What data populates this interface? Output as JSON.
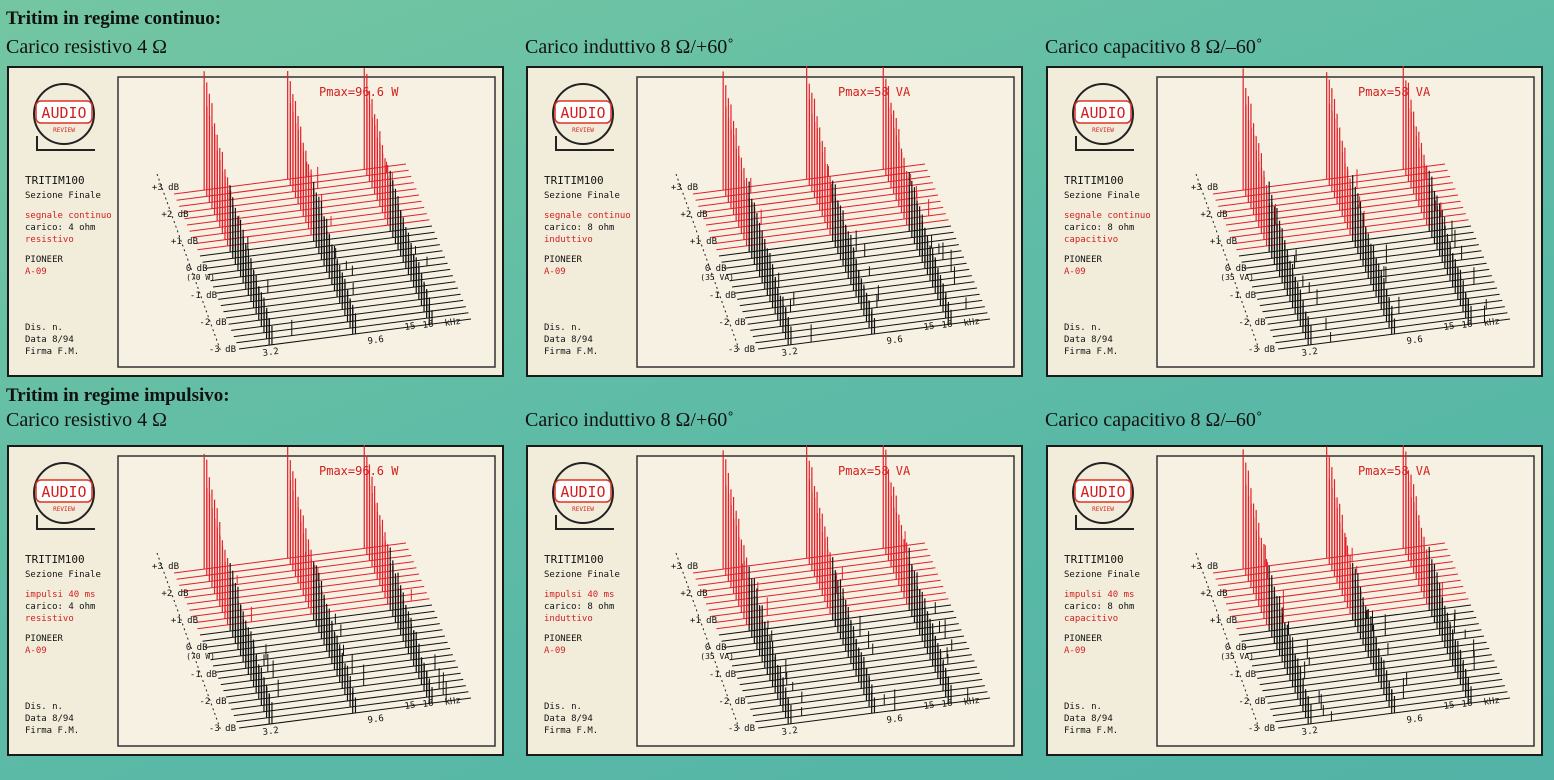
{
  "sections": [
    {
      "title": "Tritim in regime continuo:",
      "panels": [
        {
          "caption": "Carico resistivo 4 Ω",
          "pmax": "Pmax=96.6 W",
          "logo": "AUDIO",
          "logo_sub": "REVIEW",
          "model": "TRITIM100",
          "section": "Sezione Finale",
          "signal": "segnale continuo",
          "load": "carico: 4 ohm",
          "load_type": "resistivo",
          "brand": "PIONEER",
          "device": "A-09",
          "dis": "Dis. n.",
          "date": "Data 8/94",
          "sign": "Firma F.M.",
          "y_labels": [
            "+3 dB",
            "+2 dB",
            "+1 dB",
            "0 dB",
            "-1 dB",
            "-2 dB",
            "-3 dB"
          ],
          "zero_ref": "(70 W)",
          "x_labels": [
            "3.2",
            "9.6",
            "15",
            "16",
            "kHz"
          ]
        },
        {
          "caption": "Carico induttivo 8 Ω/+60˚",
          "pmax": "Pmax=58 VA",
          "logo": "AUDIO",
          "logo_sub": "REVIEW",
          "model": "TRITIM100",
          "section": "Sezione Finale",
          "signal": "segnale continuo",
          "load": "carico: 8 ohm",
          "load_type": "induttivo",
          "brand": "PIONEER",
          "device": "A-09",
          "dis": "Dis. n.",
          "date": "Data 8/94",
          "sign": "Firma F.M.",
          "y_labels": [
            "+3 dB",
            "+2 dB",
            "+1 dB",
            "0 dB",
            "-1 dB",
            "-2 dB",
            "-3 dB"
          ],
          "zero_ref": "(35 VA)",
          "x_labels": [
            "3.2",
            "9.6",
            "15",
            "16",
            "kHz"
          ]
        },
        {
          "caption": "Carico capacitivo 8 Ω/–60˚",
          "pmax": "Pmax=58 VA",
          "logo": "AUDIO",
          "logo_sub": "REVIEW",
          "model": "TRITIM100",
          "section": "Sezione Finale",
          "signal": "segnale continuo",
          "load": "carico: 8 ohm",
          "load_type": "capacitivo",
          "brand": "PIONEER",
          "device": "A-09",
          "dis": "Dis. n.",
          "date": "Data 8/94",
          "sign": "Firma F.M.",
          "y_labels": [
            "+3 dB",
            "+2 dB",
            "+1 dB",
            "0 dB",
            "-1 dB",
            "-2 dB",
            "-3 dB"
          ],
          "zero_ref": "(35 VA)",
          "x_labels": [
            "3.2",
            "9.6",
            "15",
            "16",
            "kHz"
          ]
        }
      ]
    },
    {
      "title": "Tritim in regime impulsivo:",
      "panels": [
        {
          "caption": "Carico resistivo 4 Ω",
          "pmax": "Pmax=96.6 W",
          "logo": "AUDIO",
          "logo_sub": "REVIEW",
          "model": "TRITIM100",
          "section": "Sezione Finale",
          "signal": "impulsi 40 ms",
          "load": "carico: 4 ohm",
          "load_type": "resistivo",
          "brand": "PIONEER",
          "device": "A-09",
          "dis": "Dis. n.",
          "date": "Data 8/94",
          "sign": "Firma F.M.",
          "y_labels": [
            "+3 dB",
            "+2 dB",
            "+1 dB",
            "0 dB",
            "-1 dB",
            "-2 dB",
            "-3 dB"
          ],
          "zero_ref": "(70 W)",
          "x_labels": [
            "3.2",
            "9.6",
            "15",
            "16",
            "kHz"
          ]
        },
        {
          "caption": "Carico induttivo 8 Ω/+60˚",
          "pmax": "Pmax=58 VA",
          "logo": "AUDIO",
          "logo_sub": "REVIEW",
          "model": "TRITIM100",
          "section": "Sezione Finale",
          "signal": "impulsi 40 ms",
          "load": "carico: 8 ohm",
          "load_type": "induttivo",
          "brand": "PIONEER",
          "device": "A-09",
          "dis": "Dis. n.",
          "date": "Data 8/94",
          "sign": "Firma F.M.",
          "y_labels": [
            "+3 dB",
            "+2 dB",
            "+1 dB",
            "0 dB",
            "-1 dB",
            "-2 dB",
            "-3 dB"
          ],
          "zero_ref": "(35 VA)",
          "x_labels": [
            "3.2",
            "9.6",
            "15",
            "16",
            "kHz"
          ]
        },
        {
          "caption": "Carico capacitivo 8 Ω/–60˚",
          "pmax": "Pmax=58 VA",
          "logo": "AUDIO",
          "logo_sub": "REVIEW",
          "model": "TRITIM100",
          "section": "Sezione Finale",
          "signal": "impulsi 40 ms",
          "load": "carico: 8 ohm",
          "load_type": "capacitivo",
          "brand": "PIONEER",
          "device": "A-09",
          "dis": "Dis. n.",
          "date": "Data 8/94",
          "sign": "Firma F.M.",
          "y_labels": [
            "+3 dB",
            "+2 dB",
            "+1 dB",
            "0 dB",
            "-1 dB",
            "-2 dB",
            "-3 dB"
          ],
          "zero_ref": "(35 VA)",
          "x_labels": [
            "3.2",
            "9.6",
            "15",
            "16",
            "kHz"
          ]
        }
      ]
    }
  ]
}
